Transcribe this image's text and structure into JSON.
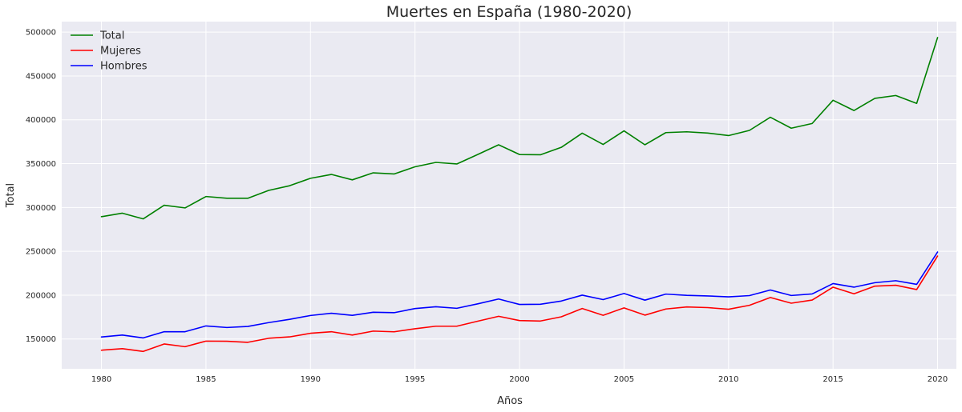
{
  "chart_data": {
    "type": "line",
    "title": "Muertes en España (1980-2020)",
    "xlabel": "Años",
    "ylabel": "Total",
    "xlim": [
      1978.1,
      2020.9
    ],
    "ylim": [
      116000,
      512000
    ],
    "xticks": [
      1980,
      1985,
      1990,
      1995,
      2000,
      2005,
      2010,
      2015,
      2020
    ],
    "yticks": [
      150000,
      200000,
      250000,
      300000,
      350000,
      400000,
      450000,
      500000
    ],
    "grid": true,
    "legend_position": "top-left",
    "background": "#eaeaf2",
    "x": [
      1980,
      1981,
      1982,
      1983,
      1984,
      1985,
      1986,
      1987,
      1988,
      1989,
      1990,
      1991,
      1992,
      1993,
      1994,
      1995,
      1996,
      1997,
      1998,
      1999,
      2000,
      2001,
      2002,
      2003,
      2004,
      2005,
      2006,
      2007,
      2008,
      2009,
      2010,
      2011,
      2012,
      2013,
      2014,
      2015,
      2016,
      2017,
      2018,
      2019,
      2020
    ],
    "series": [
      {
        "name": "Total",
        "color": "#008000",
        "values": [
          289500,
          293500,
          287000,
          302500,
          299500,
          312500,
          310500,
          310500,
          319500,
          324800,
          333300,
          337700,
          331500,
          339500,
          338200,
          346400,
          351400,
          349600,
          360400,
          371500,
          360400,
          360100,
          368600,
          384800,
          371900,
          387400,
          371500,
          385400,
          386300,
          384900,
          382000,
          387900,
          402900,
          390400,
          395800,
          422300,
          410600,
          424500,
          427700,
          418700,
          493800
        ]
      },
      {
        "name": "Mujeres",
        "color": "#ff0000",
        "values": [
          137200,
          139000,
          135800,
          144300,
          141200,
          147600,
          147400,
          146200,
          150800,
          152400,
          156500,
          158300,
          154500,
          159000,
          158200,
          161700,
          164600,
          164600,
          170300,
          175900,
          171000,
          170500,
          175300,
          184800,
          177000,
          185500,
          177200,
          184200,
          186500,
          185800,
          183900,
          188400,
          197300,
          190800,
          194400,
          209100,
          201500,
          210300,
          211300,
          206400,
          244600
        ]
      },
      {
        "name": "Hombres",
        "color": "#0000ff",
        "values": [
          152300,
          154500,
          151200,
          158300,
          158300,
          164900,
          163100,
          164300,
          168700,
          172400,
          176800,
          179400,
          177000,
          180500,
          180000,
          184700,
          186800,
          185000,
          190100,
          195600,
          189400,
          189600,
          193300,
          200000,
          194900,
          201900,
          194300,
          201200,
          199800,
          199100,
          198100,
          199500,
          205900,
          199600,
          201400,
          213200,
          209100,
          214200,
          216500,
          212300,
          249200
        ]
      }
    ]
  }
}
